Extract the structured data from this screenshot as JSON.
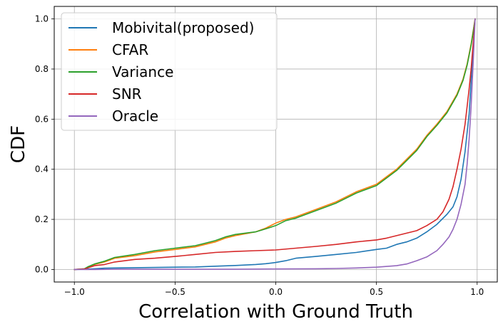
{
  "chart_data": {
    "type": "line",
    "title": "",
    "xlabel": "Correlation with Ground Truth",
    "ylabel": "CDF",
    "xlim": [
      -1.1,
      1.1
    ],
    "ylim": [
      -0.05,
      1.05
    ],
    "grid": true,
    "legend_position": "top-left",
    "xticks": [
      -1.0,
      -0.5,
      0.0,
      0.5,
      1.0
    ],
    "xtick_labels": [
      "−1.0",
      "−0.5",
      "0.0",
      "0.5",
      "1.0"
    ],
    "yticks": [
      0.0,
      0.2,
      0.4,
      0.6,
      0.8,
      1.0
    ],
    "ytick_labels": [
      "0.0",
      "0.2",
      "0.4",
      "0.6",
      "0.8",
      "1.0"
    ],
    "series": [
      {
        "name": "Mobivital(proposed)",
        "color": "#1f77b4",
        "x": [
          -1.0,
          -0.95,
          -0.9,
          -0.85,
          -0.8,
          -0.7,
          -0.6,
          -0.5,
          -0.4,
          -0.3,
          -0.2,
          -0.1,
          -0.05,
          0.0,
          0.05,
          0.1,
          0.2,
          0.3,
          0.4,
          0.5,
          0.55,
          0.6,
          0.65,
          0.7,
          0.75,
          0.8,
          0.85,
          0.88,
          0.9,
          0.92,
          0.94,
          0.96,
          0.97,
          0.98,
          0.99
        ],
        "y": [
          0.0,
          0.001,
          0.003,
          0.005,
          0.006,
          0.007,
          0.008,
          0.009,
          0.01,
          0.013,
          0.016,
          0.02,
          0.023,
          0.028,
          0.035,
          0.045,
          0.052,
          0.06,
          0.068,
          0.08,
          0.085,
          0.1,
          0.11,
          0.125,
          0.15,
          0.18,
          0.22,
          0.25,
          0.29,
          0.36,
          0.47,
          0.62,
          0.75,
          0.88,
          1.0
        ]
      },
      {
        "name": "CFAR",
        "color": "#ff7f0e",
        "x": [
          -1.0,
          -0.95,
          -0.93,
          -0.9,
          -0.85,
          -0.8,
          -0.7,
          -0.6,
          -0.5,
          -0.4,
          -0.35,
          -0.3,
          -0.25,
          -0.2,
          -0.1,
          -0.05,
          0.0,
          0.05,
          0.1,
          0.2,
          0.3,
          0.4,
          0.5,
          0.55,
          0.6,
          0.65,
          0.7,
          0.75,
          0.8,
          0.85,
          0.9,
          0.93,
          0.95,
          0.97,
          0.98,
          0.99
        ],
        "y": [
          0.0,
          0.002,
          0.01,
          0.02,
          0.03,
          0.045,
          0.055,
          0.07,
          0.08,
          0.09,
          0.1,
          0.11,
          0.125,
          0.135,
          0.15,
          0.165,
          0.185,
          0.2,
          0.21,
          0.24,
          0.27,
          0.31,
          0.34,
          0.37,
          0.4,
          0.44,
          0.48,
          0.535,
          0.58,
          0.63,
          0.7,
          0.76,
          0.82,
          0.9,
          0.95,
          1.0
        ]
      },
      {
        "name": "Variance",
        "color": "#2ca02c",
        "x": [
          -1.0,
          -0.95,
          -0.93,
          -0.9,
          -0.85,
          -0.8,
          -0.7,
          -0.6,
          -0.5,
          -0.4,
          -0.35,
          -0.3,
          -0.25,
          -0.2,
          -0.1,
          -0.05,
          0.0,
          0.05,
          0.1,
          0.2,
          0.3,
          0.4,
          0.5,
          0.55,
          0.6,
          0.65,
          0.7,
          0.75,
          0.8,
          0.85,
          0.9,
          0.93,
          0.95,
          0.97,
          0.98,
          0.99
        ],
        "y": [
          0.0,
          0.003,
          0.012,
          0.022,
          0.033,
          0.048,
          0.06,
          0.075,
          0.085,
          0.095,
          0.105,
          0.115,
          0.13,
          0.14,
          0.15,
          0.162,
          0.175,
          0.195,
          0.205,
          0.235,
          0.265,
          0.305,
          0.335,
          0.365,
          0.395,
          0.435,
          0.475,
          0.53,
          0.575,
          0.625,
          0.695,
          0.755,
          0.815,
          0.895,
          0.945,
          1.0
        ]
      },
      {
        "name": "SNR",
        "color": "#d62728",
        "x": [
          -1.0,
          -0.95,
          -0.9,
          -0.85,
          -0.8,
          -0.7,
          -0.6,
          -0.5,
          -0.4,
          -0.3,
          -0.2,
          -0.1,
          0.0,
          0.1,
          0.2,
          0.3,
          0.4,
          0.5,
          0.55,
          0.6,
          0.65,
          0.7,
          0.75,
          0.8,
          0.83,
          0.86,
          0.88,
          0.9,
          0.92,
          0.94,
          0.95,
          0.96,
          0.97,
          0.98,
          0.99
        ],
        "y": [
          0.0,
          0.002,
          0.015,
          0.02,
          0.03,
          0.04,
          0.045,
          0.052,
          0.06,
          0.068,
          0.072,
          0.075,
          0.078,
          0.085,
          0.092,
          0.1,
          0.11,
          0.118,
          0.125,
          0.135,
          0.145,
          0.155,
          0.175,
          0.2,
          0.23,
          0.28,
          0.33,
          0.4,
          0.48,
          0.58,
          0.65,
          0.72,
          0.8,
          0.9,
          1.0
        ]
      },
      {
        "name": "Oracle",
        "color": "#9467bd",
        "x": [
          -1.0,
          -0.9,
          -0.8,
          -0.6,
          -0.4,
          -0.2,
          0.0,
          0.2,
          0.3,
          0.4,
          0.5,
          0.6,
          0.65,
          0.7,
          0.75,
          0.8,
          0.83,
          0.86,
          0.88,
          0.9,
          0.92,
          0.94,
          0.95,
          0.96,
          0.97,
          0.98,
          0.99
        ],
        "y": [
          0.0,
          0.0,
          0.001,
          0.001,
          0.001,
          0.001,
          0.002,
          0.003,
          0.004,
          0.006,
          0.009,
          0.015,
          0.022,
          0.035,
          0.05,
          0.075,
          0.1,
          0.13,
          0.16,
          0.2,
          0.26,
          0.34,
          0.42,
          0.52,
          0.65,
          0.82,
          1.0
        ]
      }
    ]
  }
}
